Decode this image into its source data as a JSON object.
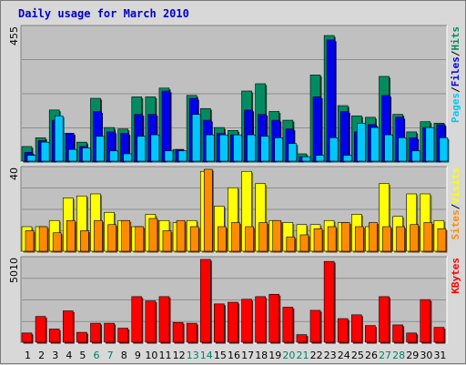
{
  "title": "Daily usage for March 2010",
  "colors": {
    "panel_bg": "#c0c0c0",
    "hits": "#008c60",
    "files": "#0000ee",
    "pages": "#00c8ff",
    "visits": "#ffff00",
    "sites": "#ff8c00",
    "kbytes": "#ff0000",
    "weekday": "#000000",
    "weekend": "#008060",
    "separator": "#000000"
  },
  "chart_data": [
    {
      "type": "bar",
      "name": "hits-files-pages",
      "y_max_label": "455",
      "ylim": [
        0,
        455
      ],
      "legend": {
        "pages": "Pages",
        "files": "Files",
        "hits": "Hits",
        "separator": "/"
      },
      "series": [
        {
          "name": "Hits",
          "color_key": "hits",
          "values": [
            50,
            80,
            175,
            95,
            65,
            215,
            115,
            110,
            220,
            220,
            250,
            40,
            225,
            180,
            115,
            105,
            240,
            265,
            170,
            140,
            25,
            295,
            430,
            190,
            155,
            150,
            290,
            160,
            100,
            135,
            130
          ]
        },
        {
          "name": "Files",
          "color_key": "files",
          "values": [
            30,
            70,
            140,
            95,
            50,
            170,
            100,
            95,
            160,
            160,
            240,
            40,
            215,
            140,
            95,
            90,
            175,
            160,
            140,
            110,
            15,
            220,
            415,
            170,
            100,
            125,
            225,
            150,
            80,
            115,
            125
          ]
        },
        {
          "name": "Pages",
          "color_key": "pages",
          "values": [
            20,
            65,
            155,
            40,
            45,
            85,
            35,
            25,
            85,
            90,
            35,
            35,
            160,
            90,
            90,
            90,
            90,
            85,
            80,
            60,
            15,
            20,
            80,
            20,
            130,
            115,
            90,
            80,
            35,
            115,
            80
          ]
        }
      ]
    },
    {
      "type": "bar",
      "name": "visits-sites",
      "y_max_label": "40",
      "ylim": [
        0,
        40
      ],
      "legend": {
        "sites": "Sites",
        "visits": "Visits",
        "separator": "/"
      },
      "series": [
        {
          "name": "Visits",
          "color_key": "visits",
          "values": [
            12,
            12,
            15,
            26,
            27,
            28,
            19,
            15,
            12,
            18,
            15,
            14,
            15,
            39,
            22,
            31,
            39,
            33,
            15,
            14,
            13,
            13,
            15,
            14,
            18,
            12,
            33,
            17,
            28,
            28,
            15
          ]
        },
        {
          "name": "Sites",
          "color_key": "sites",
          "values": [
            10,
            12,
            9,
            15,
            10,
            15,
            13,
            15,
            12,
            16,
            10,
            15,
            12,
            40,
            12,
            14,
            12,
            14,
            15,
            7,
            8,
            11,
            12,
            14,
            12,
            14,
            12,
            12,
            13,
            14,
            11
          ]
        }
      ]
    },
    {
      "type": "bar",
      "name": "kbytes",
      "y_max_label": "5010",
      "ylim": [
        0,
        5010
      ],
      "legend": {
        "kbytes": "KBytes"
      },
      "series": [
        {
          "name": "KBytes",
          "color_key": "kbytes",
          "values": [
            560,
            1560,
            800,
            1900,
            600,
            1150,
            1150,
            850,
            2760,
            2500,
            2760,
            1200,
            1150,
            5010,
            2320,
            2420,
            2600,
            2760,
            2900,
            2120,
            460,
            1930,
            4890,
            1430,
            1660,
            1010,
            2760,
            1050,
            560,
            2580,
            900
          ]
        }
      ]
    }
  ],
  "days": [
    "1",
    "2",
    "3",
    "4",
    "5",
    "6",
    "7",
    "8",
    "9",
    "10",
    "11",
    "12",
    "13",
    "14",
    "15",
    "16",
    "17",
    "18",
    "19",
    "20",
    "21",
    "22",
    "23",
    "24",
    "25",
    "26",
    "27",
    "28",
    "29",
    "30",
    "31"
  ],
  "weekend_days": [
    "6",
    "7",
    "13",
    "14",
    "20",
    "21",
    "27",
    "28"
  ]
}
